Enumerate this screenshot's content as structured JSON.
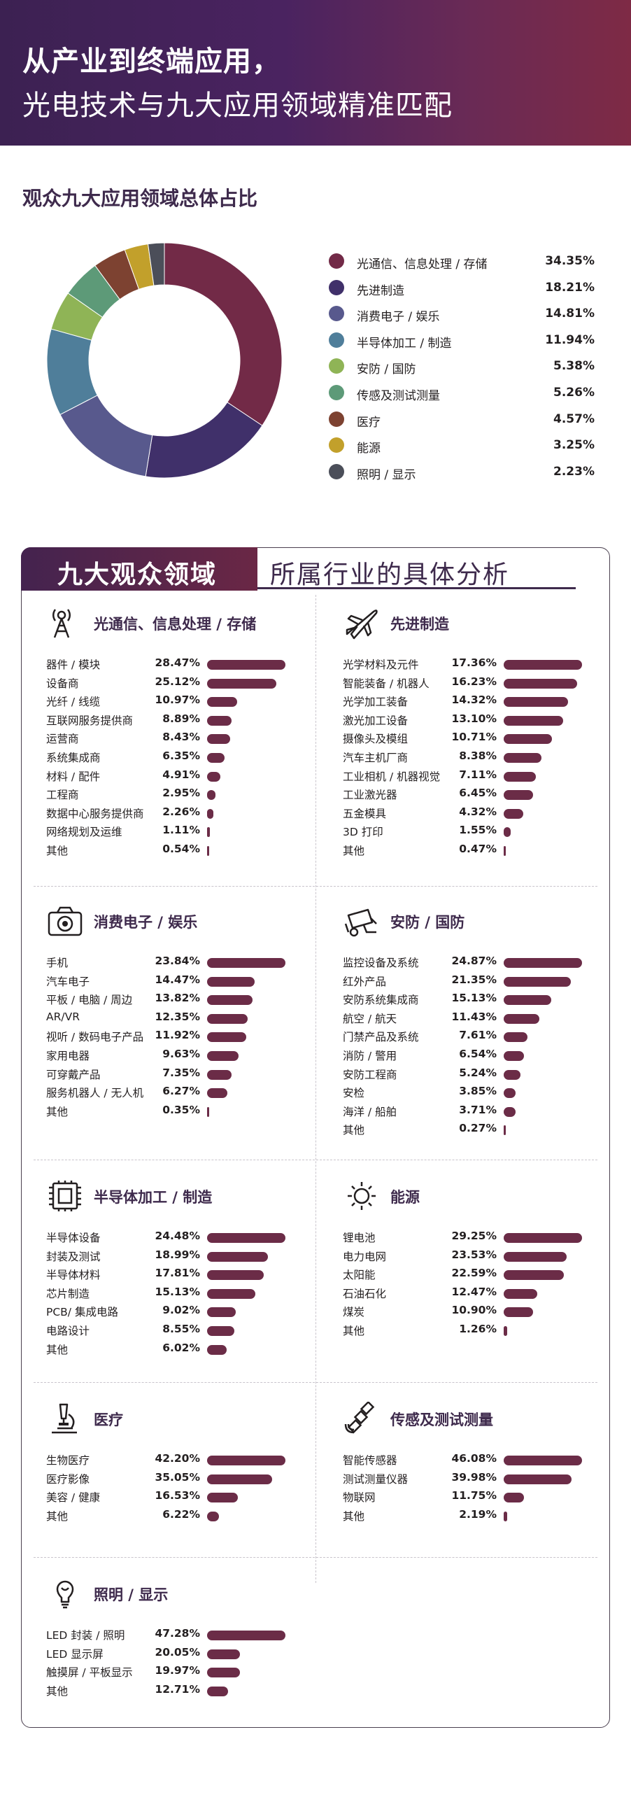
{
  "header": {
    "line1": "从产业到终端应用，",
    "line2": "光电技术与九大应用领域精准匹配"
  },
  "chart_data": [
    {
      "type": "pie",
      "title": "观众九大应用领域总体占比",
      "legend_position": "right",
      "categories": [
        "光通信、信息处理 / 存储",
        "先进制造",
        "消费电子 / 娱乐",
        "半导体加工 / 制造",
        "安防 / 国防",
        "传感及测试测量",
        "医疗",
        "能源",
        "照明 / 显示"
      ],
      "values": [
        34.35,
        18.21,
        14.81,
        11.94,
        5.38,
        5.26,
        4.57,
        3.25,
        2.23
      ],
      "labels": [
        "34.35%",
        "18.21%",
        "14.81%",
        "11.94%",
        "5.38%",
        "5.26%",
        "4.57%",
        "3.25%",
        "2.23%"
      ],
      "colors": [
        "#722a47",
        "#40306a",
        "#58598d",
        "#4f7e9a",
        "#8fb456",
        "#5d9a78",
        "#7d4231",
        "#c2a02b",
        "#4b4e59"
      ]
    },
    {
      "type": "bar",
      "title": "光通信、信息处理 / 存储",
      "categories": [
        "器件 / 模块",
        "设备商",
        "光纤 / 线缆",
        "互联网服务提供商",
        "运营商",
        "系统集成商",
        "材料 / 配件",
        "工程商",
        "数据中心服务提供商",
        "网络规划及运维",
        "其他"
      ],
      "values": [
        28.47,
        25.12,
        10.97,
        8.89,
        8.43,
        6.35,
        4.91,
        2.95,
        2.26,
        1.11,
        0.54
      ],
      "labels": [
        "28.47%",
        "25.12%",
        "10.97%",
        "8.89%",
        "8.43%",
        "6.35%",
        "4.91%",
        "2.95%",
        "2.26%",
        "1.11%",
        "0.54%"
      ]
    },
    {
      "type": "bar",
      "title": "先进制造",
      "categories": [
        "光学材料及元件",
        "智能装备 / 机器人",
        "光学加工装备",
        "激光加工设备",
        "摄像头及模组",
        "汽车主机厂商",
        "工业相机 / 机器视觉",
        "工业激光器",
        "五金模具",
        "3D 打印",
        "其他"
      ],
      "values": [
        17.36,
        16.23,
        14.32,
        13.1,
        10.71,
        8.38,
        7.11,
        6.45,
        4.32,
        1.55,
        0.47
      ],
      "labels": [
        "17.36%",
        "16.23%",
        "14.32%",
        "13.10%",
        "10.71%",
        "8.38%",
        "7.11%",
        "6.45%",
        "4.32%",
        "1.55%",
        "0.47%"
      ]
    },
    {
      "type": "bar",
      "title": "消费电子 / 娱乐",
      "categories": [
        "手机",
        "汽车电子",
        "平板 / 电脑 / 周边",
        "AR/VR",
        "视听 / 数码电子产品",
        "家用电器",
        "可穿戴产品",
        "服务机器人 / 无人机",
        "其他"
      ],
      "values": [
        23.84,
        14.47,
        13.82,
        12.35,
        11.92,
        9.63,
        7.35,
        6.27,
        0.35
      ],
      "labels": [
        "23.84%",
        "14.47%",
        "13.82%",
        "12.35%",
        "11.92%",
        "9.63%",
        "7.35%",
        "6.27%",
        "0.35%"
      ]
    },
    {
      "type": "bar",
      "title": "安防 / 国防",
      "categories": [
        "监控设备及系统",
        "红外产品",
        "安防系统集成商",
        "航空 / 航天",
        "门禁产品及系统",
        "消防 / 警用",
        "安防工程商",
        "安检",
        "海洋 / 船舶",
        "其他"
      ],
      "values": [
        24.87,
        21.35,
        15.13,
        11.43,
        7.61,
        6.54,
        5.24,
        3.85,
        3.71,
        0.27
      ],
      "labels": [
        "24.87%",
        "21.35%",
        "15.13%",
        "11.43%",
        "7.61%",
        "6.54%",
        "5.24%",
        "3.85%",
        "3.71%",
        "0.27%"
      ]
    },
    {
      "type": "bar",
      "title": "半导体加工 / 制造",
      "categories": [
        "半导体设备",
        "封装及测试",
        "半导体材料",
        "芯片制造",
        "PCB/ 集成电路",
        "电路设计",
        "其他"
      ],
      "values": [
        24.48,
        18.99,
        17.81,
        15.13,
        9.02,
        8.55,
        6.02
      ],
      "labels": [
        "24.48%",
        "18.99%",
        "17.81%",
        "15.13%",
        "9.02%",
        "8.55%",
        "6.02%"
      ]
    },
    {
      "type": "bar",
      "title": "能源",
      "categories": [
        "锂电池",
        "电力电网",
        "太阳能",
        "石油石化",
        "煤炭",
        "其他"
      ],
      "values": [
        29.25,
        23.53,
        22.59,
        12.47,
        10.9,
        1.26
      ],
      "labels": [
        "29.25%",
        "23.53%",
        "22.59%",
        "12.47%",
        "10.90%",
        "1.26%"
      ]
    },
    {
      "type": "bar",
      "title": "医疗",
      "categories": [
        "生物医疗",
        "医疗影像",
        "美容 / 健康",
        "其他"
      ],
      "values": [
        42.2,
        35.05,
        16.53,
        6.22
      ],
      "labels": [
        "42.20%",
        "35.05%",
        "16.53%",
        "6.22%"
      ]
    },
    {
      "type": "bar",
      "title": "传感及测试测量",
      "categories": [
        "智能传感器",
        "测试测量仪器",
        "物联网",
        "其他"
      ],
      "values": [
        46.08,
        39.98,
        11.75,
        2.19
      ],
      "labels": [
        "46.08%",
        "39.98%",
        "11.75%",
        "2.19%"
      ]
    },
    {
      "type": "bar",
      "title": "照明 / 显示",
      "categories": [
        "LED 封装 / 照明",
        "LED 显示屏",
        "触摸屏 / 平板显示",
        "其他"
      ],
      "values": [
        47.28,
        20.05,
        19.97,
        12.71
      ],
      "labels": [
        "47.28%",
        "20.05%",
        "19.97%",
        "12.71%"
      ]
    }
  ],
  "section2": {
    "title_left": "九大观众领域",
    "title_right": "所属行业的具体分析"
  },
  "icons": [
    "antenna-icon",
    "airplane-icon",
    "camera-icon",
    "cctv-camera-icon",
    "chip-icon",
    "sun-icon",
    "microscope-icon",
    "satellite-icon",
    "light-bulb-icon"
  ],
  "colors": {
    "bar": "#6b2c47",
    "title": "#3e2a4c"
  }
}
